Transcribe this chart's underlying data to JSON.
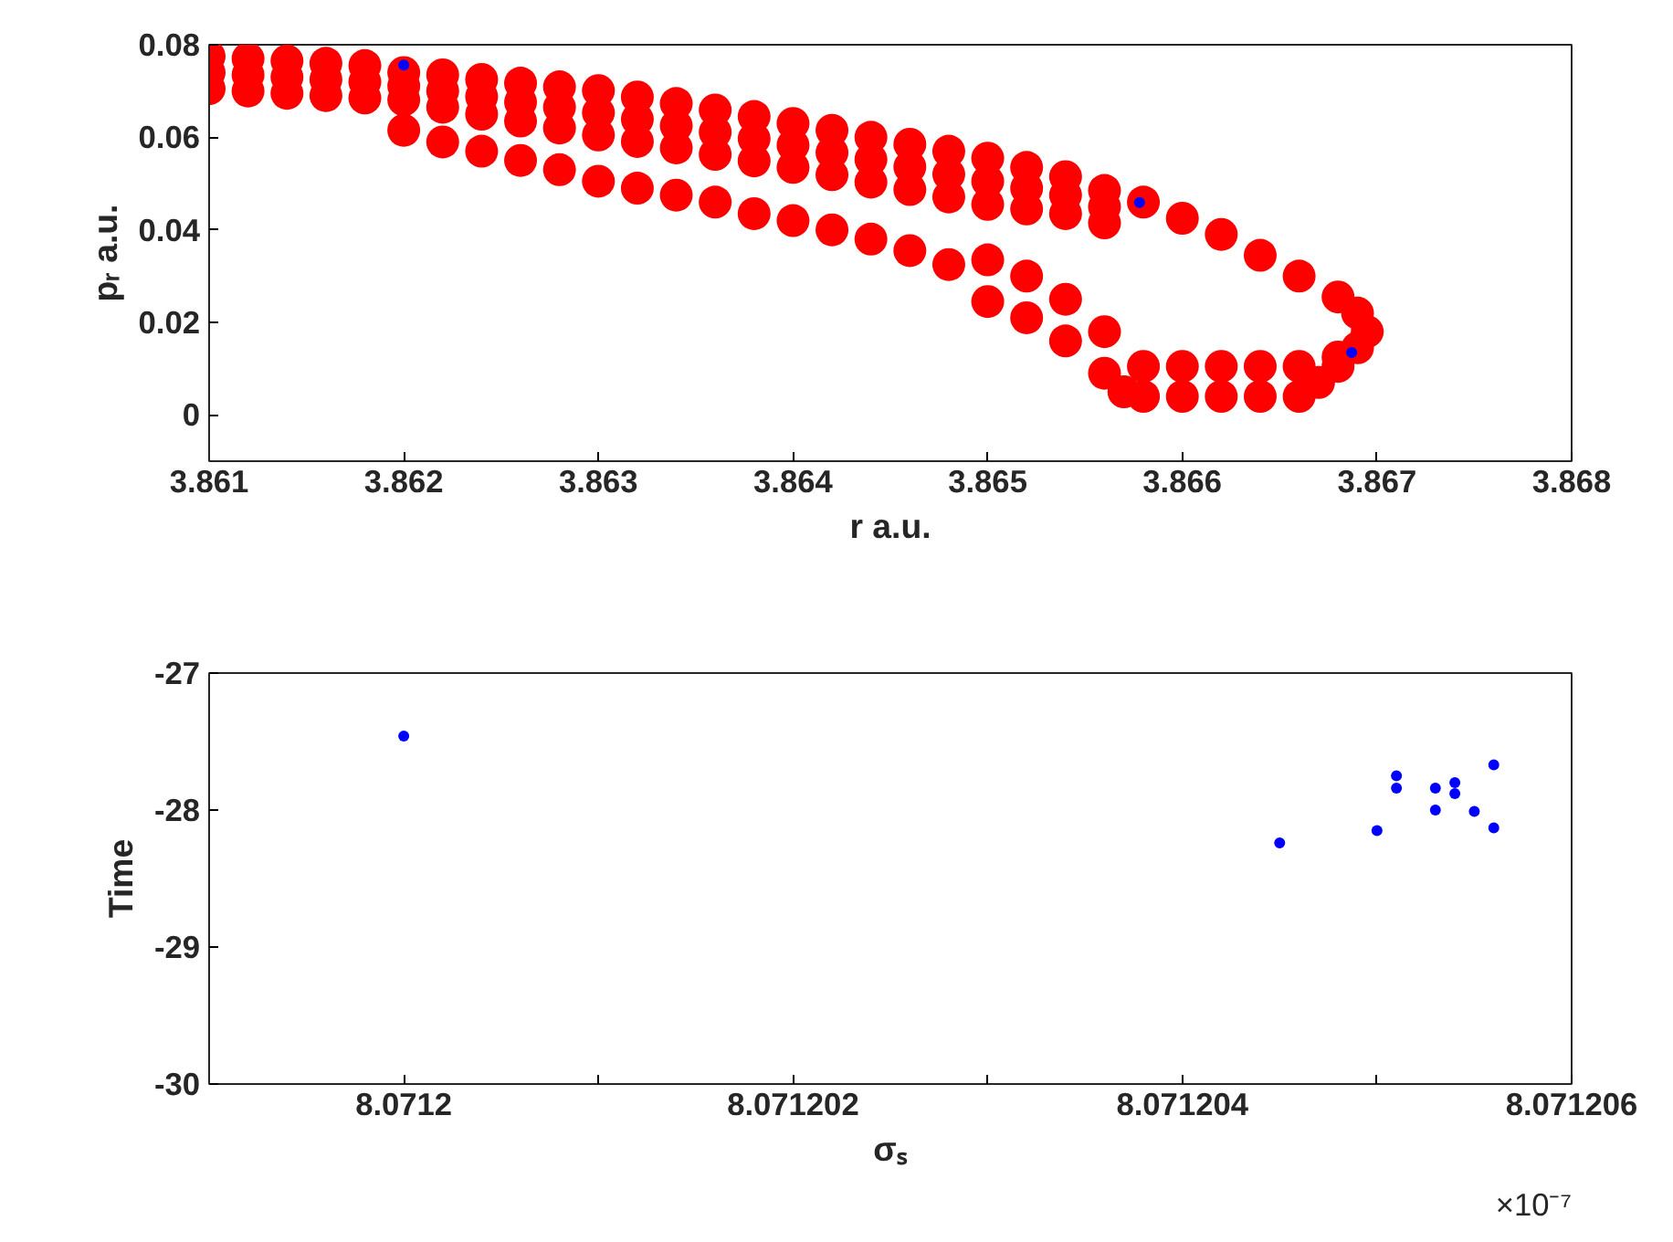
{
  "chart_data": [
    {
      "type": "scatter",
      "xlabel": "r a.u.",
      "ylabel": "pᵣ a.u.",
      "xlim": [
        3.861,
        3.868
      ],
      "ylim": [
        -0.01,
        0.08
      ],
      "xticks": [
        3.861,
        3.862,
        3.863,
        3.864,
        3.865,
        3.866,
        3.867,
        3.868
      ],
      "yticks": [
        0,
        0.02,
        0.04,
        0.06,
        0.08
      ],
      "grid": false,
      "marker": "circle",
      "series": [
        {
          "color": "#ff0000",
          "x": [
            3.861,
            3.861,
            3.861,
            3.8612,
            3.8612,
            3.8612,
            3.8614,
            3.8614,
            3.8614,
            3.8616,
            3.8616,
            3.8616,
            3.8618,
            3.8618,
            3.8618,
            3.862,
            3.862,
            3.862,
            3.8622,
            3.8622,
            3.8622,
            3.8624,
            3.8624,
            3.8624,
            3.8626,
            3.8626,
            3.8626,
            3.8628,
            3.8628,
            3.8628,
            3.863,
            3.863,
            3.863,
            3.8632,
            3.8632,
            3.8632,
            3.8634,
            3.8634,
            3.8634,
            3.8636,
            3.8636,
            3.8636,
            3.8638,
            3.8638,
            3.8638,
            3.864,
            3.864,
            3.864,
            3.8642,
            3.8642,
            3.8642,
            3.8644,
            3.8644,
            3.8644,
            3.8646,
            3.8646,
            3.8646,
            3.8648,
            3.8648,
            3.8648,
            3.865,
            3.865,
            3.865,
            3.8652,
            3.8652,
            3.8652,
            3.8654,
            3.8654,
            3.8654,
            3.8656,
            3.8656,
            3.8656,
            3.8658,
            3.866,
            3.8662,
            3.8664,
            3.8666,
            3.8668,
            3.8669,
            3.86695,
            3.8669,
            3.8668,
            3.8658,
            3.866,
            3.8662,
            3.8664,
            3.8666,
            3.8658,
            3.866,
            3.8662,
            3.8664,
            3.8666,
            3.8668,
            3.8667,
            3.862,
            3.8622,
            3.8624,
            3.8626,
            3.8628,
            3.863,
            3.8632,
            3.8634,
            3.8636,
            3.8638,
            3.864,
            3.8642,
            3.8644,
            3.8646,
            3.8648,
            3.865,
            3.865,
            3.8652,
            3.8652,
            3.8654,
            3.8654,
            3.8656,
            3.8656,
            3.8657
          ],
          "values": [
            0.0775,
            0.074,
            0.0705,
            0.077,
            0.0735,
            0.07,
            0.0765,
            0.073,
            0.0695,
            0.076,
            0.0725,
            0.069,
            0.0755,
            0.072,
            0.0685,
            0.074,
            0.0711,
            0.0681,
            0.0735,
            0.07,
            0.0665,
            0.0725,
            0.0688,
            0.065,
            0.0717,
            0.0676,
            0.0635,
            0.0709,
            0.0665,
            0.062,
            0.0701,
            0.0653,
            0.0605,
            0.0687,
            0.0639,
            0.0591,
            0.0673,
            0.0625,
            0.0577,
            0.0659,
            0.0611,
            0.0563,
            0.0645,
            0.0597,
            0.0549,
            0.063,
            0.0583,
            0.0535,
            0.0615,
            0.0567,
            0.0519,
            0.06,
            0.0552,
            0.0503,
            0.0585,
            0.0536,
            0.0487,
            0.057,
            0.052,
            0.0471,
            0.0555,
            0.0505,
            0.0455,
            0.0535,
            0.049,
            0.0445,
            0.0515,
            0.0475,
            0.0435,
            0.0485,
            0.045,
            0.0415,
            0.046,
            0.0425,
            0.039,
            0.0345,
            0.03,
            0.0255,
            0.022,
            0.018,
            0.0145,
            0.0125,
            0.004,
            0.004,
            0.004,
            0.004,
            0.004,
            0.0105,
            0.0105,
            0.0105,
            0.0105,
            0.0105,
            0.0105,
            0.007,
            0.0615,
            0.059,
            0.057,
            0.055,
            0.053,
            0.0505,
            0.049,
            0.0475,
            0.046,
            0.0435,
            0.042,
            0.04,
            0.038,
            0.0355,
            0.0325,
            0.0335,
            0.0245,
            0.03,
            0.021,
            0.025,
            0.016,
            0.018,
            0.009,
            0.005
          ]
        },
        {
          "color": "#0000ff",
          "x": [
            3.862,
            3.86578,
            3.86687
          ],
          "values": [
            0.0756,
            0.0459,
            0.0135
          ]
        }
      ]
    },
    {
      "type": "scatter",
      "xlabel": "σₛ",
      "ylabel": "Time",
      "xlim": [
        8.071199,
        8.071206
      ],
      "ylim": [
        -30,
        -27
      ],
      "xticks": [
        8.0712,
        {
          "value": 8.071201,
          "label": null
        },
        8.071202,
        {
          "value": 8.071203,
          "label": null
        },
        8.071204,
        {
          "value": 8.071205,
          "label": null
        },
        8.071206
      ],
      "yticks": [
        -30,
        -29,
        -28,
        -27
      ],
      "grid": false,
      "marker": "circle",
      "annotations": [
        "×10⁻⁷"
      ],
      "series": [
        {
          "color": "#0000ff",
          "x": [
            8.0712,
            8.0712045,
            8.071205,
            8.0712051,
            8.0712051,
            8.0712053,
            8.0712053,
            8.0712054,
            8.0712054,
            8.0712055,
            8.0712056,
            8.0712056
          ],
          "values": [
            -27.46,
            -28.24,
            -28.15,
            -27.75,
            -27.84,
            -27.84,
            -28.0,
            -27.8,
            -27.88,
            -28.01,
            -28.13,
            -27.67
          ]
        }
      ]
    }
  ]
}
